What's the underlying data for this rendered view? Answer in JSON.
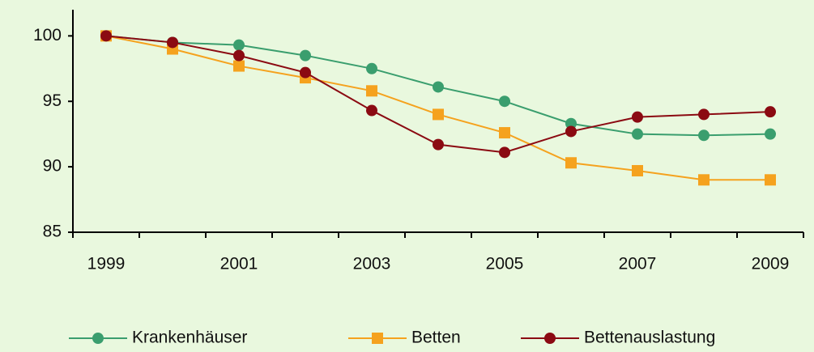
{
  "chart_data": {
    "type": "line",
    "categories": [
      "1999",
      null,
      "2001",
      null,
      "2003",
      null,
      "2005",
      null,
      "2007",
      null,
      "2009"
    ],
    "series": [
      {
        "name": "Krankenhäuser",
        "color": "#3a9e6e",
        "marker": "circle",
        "values": [
          100,
          99.5,
          99.3,
          98.5,
          97.5,
          96.1,
          95.0,
          93.3,
          92.5,
          92.4,
          92.5
        ]
      },
      {
        "name": "Betten",
        "color": "#f5a21e",
        "marker": "square",
        "values": [
          100,
          99.0,
          97.7,
          96.8,
          95.8,
          94.0,
          92.6,
          90.3,
          89.7,
          89.0,
          89.0
        ]
      },
      {
        "name": "Bettenauslastung",
        "color": "#8b0a12",
        "marker": "circle",
        "values": [
          100,
          99.5,
          98.5,
          97.2,
          94.3,
          91.7,
          91.1,
          92.7,
          93.8,
          94.0,
          94.2
        ]
      }
    ],
    "ylim": [
      85,
      102
    ],
    "yticks": [
      85,
      90,
      95,
      100
    ],
    "legend": "bottom"
  }
}
